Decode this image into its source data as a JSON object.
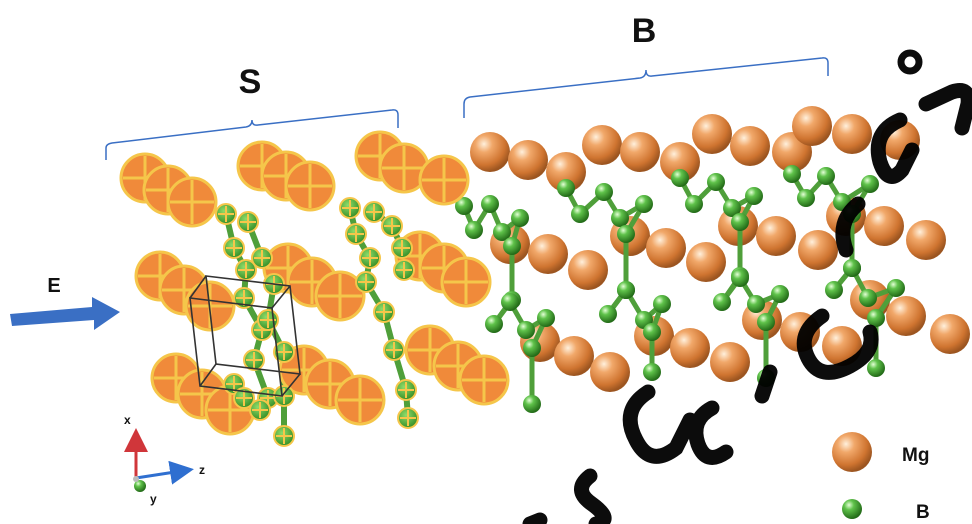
{
  "regions": {
    "surface_label": "S",
    "bulk_label": "B"
  },
  "field": {
    "label": "E"
  },
  "axes": {
    "x_label": "x",
    "y_label": "y",
    "z_label": "z"
  },
  "legend": {
    "items": [
      {
        "label": "Mg",
        "icon": "mg-atom-sphere"
      },
      {
        "label": "B",
        "icon": "b-atom-sphere"
      }
    ]
  },
  "colors": {
    "mg_bulk": "#e08a3c",
    "mg_surface": "#f08a3a",
    "mg_surface_outline": "#f5c64a",
    "boron": "#3f9a2c",
    "boron_bond": "#4f9f3a",
    "bracket": "#3a6fc4",
    "field_arrow": "#3a6fc4",
    "axis_x": "#d0363a",
    "axis_y": "#3a9a3a",
    "axis_z": "#2f6fd0",
    "watermark": "#000000"
  }
}
